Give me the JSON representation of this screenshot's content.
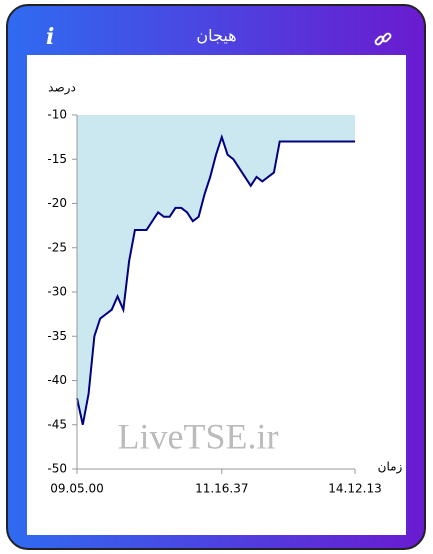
{
  "header": {
    "info": "i",
    "title": "هیجان"
  },
  "watermark": "LiveTSE.ir",
  "chart_data": {
    "type": "area",
    "y_label": "درصد",
    "x_label": "زمان",
    "categories": [
      "09.05.00",
      null,
      null,
      null,
      null,
      null,
      null,
      null,
      null,
      null,
      null,
      null,
      null,
      null,
      null,
      null,
      null,
      null,
      null,
      null,
      null,
      null,
      null,
      null,
      null,
      "11.16.37",
      null,
      null,
      null,
      null,
      null,
      null,
      null,
      null,
      null,
      null,
      null,
      null,
      null,
      null,
      null,
      null,
      null,
      null,
      null,
      null,
      null,
      null,
      "14.12.13"
    ],
    "values": [
      -42,
      -45,
      -41.5,
      -35,
      -33,
      -32.5,
      -32,
      -30.5,
      -32,
      -26.5,
      -23,
      -23,
      -23,
      -22,
      -21,
      -21.5,
      -21.5,
      -20.5,
      -20.5,
      -21,
      -22,
      -21.5,
      -19,
      -17,
      -14.5,
      -12.5,
      -14.5,
      -15,
      -16,
      -17,
      -18,
      -17,
      -17.5,
      -17,
      -16.5,
      -13,
      -13,
      -13,
      -13,
      -13,
      -13,
      -13,
      -13,
      -13,
      -13,
      -13,
      -13,
      -13,
      -13
    ],
    "color": "#000080",
    "fill_color": "#cbe8f1",
    "ylim": [
      -50,
      -10
    ],
    "yticks": [
      -50,
      -45,
      -40,
      -35,
      -30,
      -25,
      -20,
      -15,
      -10
    ]
  }
}
